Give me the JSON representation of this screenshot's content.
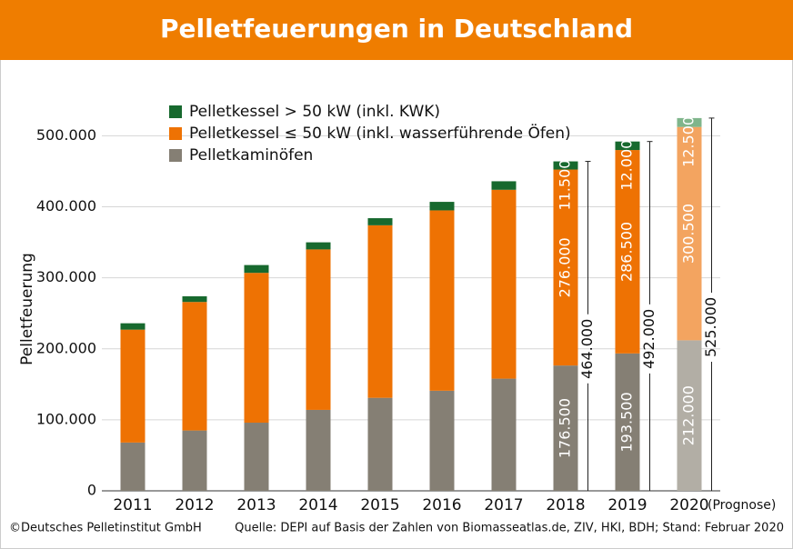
{
  "chart_data": {
    "type": "stacked-bar",
    "title": "Pelletfeuerungen in Deutschland",
    "y_label": "Pelletfeuerung",
    "categories": [
      "2011",
      "2012",
      "2013",
      "2014",
      "2015",
      "2016",
      "2017",
      "2018",
      "2019",
      "2020"
    ],
    "forecast": {
      "category": "2020",
      "label": "(Prognose)"
    },
    "series": [
      {
        "name": "Pelletkaminöfen",
        "color": "#857f74",
        "forecast_color": "#b2aea5",
        "values": [
          68000,
          85000,
          96000,
          114000,
          131000,
          141000,
          158000,
          176500,
          193500,
          212000
        ],
        "value_labels": [
          null,
          null,
          null,
          null,
          null,
          null,
          null,
          "176.500",
          "193.500",
          "212.000"
        ]
      },
      {
        "name": "Pelletkessel ≤ 50 kW (inkl. wasserführende Öfen)",
        "color": "#ee7203",
        "forecast_color": "#f3a460",
        "values": [
          159000,
          181000,
          211000,
          226000,
          243000,
          254000,
          266000,
          276000,
          286500,
          300500
        ],
        "value_labels": [
          null,
          null,
          null,
          null,
          null,
          null,
          null,
          "276.000",
          "286.500",
          "300.500"
        ]
      },
      {
        "name": "Pelletkessel > 50 kW (inkl. KWK)",
        "color": "#17692e",
        "forecast_color": "#7fb58b",
        "values": [
          9000,
          8000,
          11000,
          10000,
          10000,
          12000,
          12000,
          11500,
          12000,
          12500
        ],
        "value_labels": [
          null,
          null,
          null,
          null,
          null,
          null,
          null,
          "11.500",
          "12.000",
          "12.500"
        ]
      }
    ],
    "totals": {
      "values": [
        null,
        null,
        null,
        null,
        null,
        null,
        null,
        464000,
        492000,
        525000
      ],
      "value_labels": [
        null,
        null,
        null,
        null,
        null,
        null,
        null,
        "464.000",
        "492.000",
        "525.000"
      ]
    },
    "ylim": [
      0,
      530000
    ],
    "yticks": [
      0,
      {
        "value": 100000,
        "label": "100.000"
      },
      {
        "value": 200000,
        "label": "200.000"
      },
      {
        "value": 300000,
        "label": "300.000"
      },
      {
        "value": 400000,
        "label": "400.000"
      },
      {
        "value": 500000,
        "label": "500.000"
      }
    ],
    "grid": true,
    "footer_left": "©Deutsches Pelletinstitut GmbH",
    "footer_right": "Quelle: DEPI auf Basis der Zahlen von Biomasseatlas.de, ZIV, HKI, BDH; Stand: Februar 2020"
  }
}
